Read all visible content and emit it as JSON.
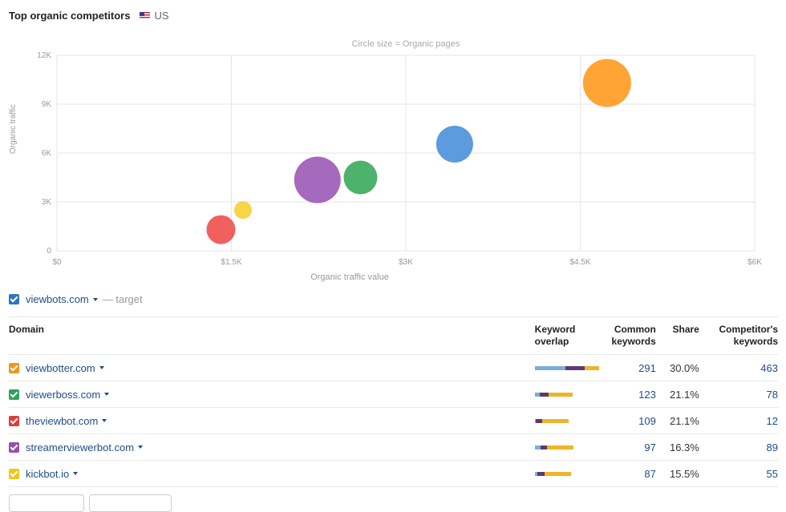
{
  "header": {
    "title": "Top organic competitors",
    "country": "US"
  },
  "chart_data": {
    "type": "scatter",
    "title": "Circle size = Organic pages",
    "xlabel": "Organic traffic value",
    "ylabel": "Organic traffic",
    "xlim": [
      0,
      6000
    ],
    "ylim": [
      0,
      12000
    ],
    "x_ticks": [
      "$0",
      "$1.5K",
      "$3K",
      "$4.5K",
      "$6K"
    ],
    "y_ticks": [
      "0",
      "3K",
      "6K",
      "9K",
      "12K"
    ],
    "grid": true,
    "points": [
      {
        "x": 4730,
        "y": 10300,
        "size": 30,
        "color": "#ff9a1f"
      },
      {
        "x": 3420,
        "y": 6550,
        "size": 23,
        "color": "#4a90d9"
      },
      {
        "x": 2610,
        "y": 4500,
        "size": 21,
        "color": "#3aaa5c"
      },
      {
        "x": 2240,
        "y": 4350,
        "size": 29,
        "color": "#9b59b6"
      },
      {
        "x": 1600,
        "y": 2500,
        "size": 11,
        "color": "#f5d033"
      },
      {
        "x": 1410,
        "y": 1300,
        "size": 18,
        "color": "#f04e4e"
      }
    ]
  },
  "target": {
    "domain": "viewbots.com",
    "note": "— target",
    "checkbox_color": "#2f74c0"
  },
  "table": {
    "headers": {
      "domain": "Domain",
      "overlap_1": "Keyword",
      "overlap_2": "overlap",
      "common_1": "Common",
      "common_2": "keywords",
      "share": "Share",
      "comp_1": "Competitor's",
      "comp_2": "keywords"
    },
    "rows": [
      {
        "domain": "viewbotter.com",
        "color": "#f0961e",
        "common": "291",
        "share": "30.0%",
        "competitor": "463",
        "overlap": [
          0.48,
          0.3,
          0.22
        ]
      },
      {
        "domain": "viewerboss.com",
        "color": "#2da35a",
        "common": "123",
        "share": "21.1%",
        "competitor": "78",
        "overlap": [
          0.13,
          0.24,
          0.63
        ]
      },
      {
        "domain": "theviewbot.com",
        "color": "#e03c3c",
        "common": "109",
        "share": "21.1%",
        "competitor": "12",
        "overlap": [
          0.04,
          0.19,
          0.77
        ]
      },
      {
        "domain": "streamerviewerbot.com",
        "color": "#944fb0",
        "common": "97",
        "share": "16.3%",
        "competitor": "89",
        "overlap": [
          0.15,
          0.17,
          0.68
        ]
      },
      {
        "domain": "kickbot.io",
        "color": "#f2c618",
        "common": "87",
        "share": "15.5%",
        "competitor": "55",
        "overlap": [
          0.08,
          0.19,
          0.73
        ]
      }
    ],
    "overlap_colors": [
      "#7aaed8",
      "#5b3a6e",
      "#f0b429"
    ]
  }
}
